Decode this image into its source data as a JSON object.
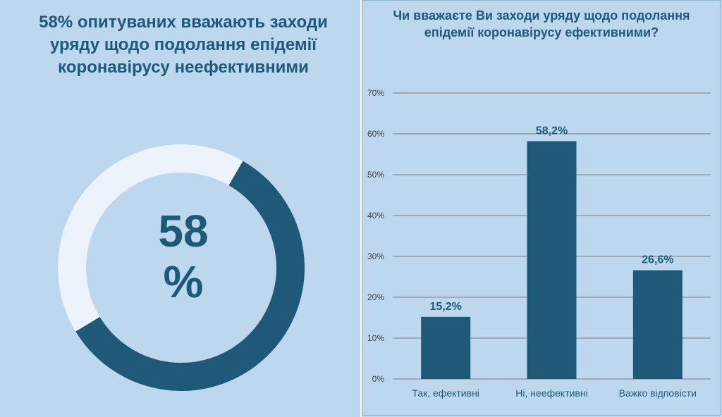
{
  "headline": "58% опитуваних вважають заходи уряду щодо подолання епідемії коронавірусу неефективними",
  "donut": {
    "value": 58,
    "label_number": "58",
    "label_unit": "%",
    "colors": {
      "filled": "#1e5a78",
      "remainder": "#edf3fa"
    }
  },
  "chart_data": {
    "type": "bar",
    "title": "Чи вважаєте Ви заходи уряду щодо подолання епідемії коронавірусу ефективними?",
    "categories": [
      "Так, ефективні",
      "Ні, неефективні",
      "Важко відповісти"
    ],
    "values": [
      15.2,
      58.2,
      26.6
    ],
    "data_labels": [
      "15,2%",
      "58,2%",
      "26,6%"
    ],
    "ylim": [
      0,
      70
    ],
    "yticks": [
      0,
      10,
      20,
      30,
      40,
      50,
      60,
      70
    ],
    "ytick_labels": [
      "0%",
      "10%",
      "20%",
      "30%",
      "40%",
      "50%",
      "60%",
      "70%"
    ],
    "xlabel": "",
    "ylabel": "",
    "grid": true,
    "legend": "none",
    "colors": {
      "bar": "#1e5a78",
      "grid": "#7f7f7f",
      "axis_text": "#404040",
      "label": "#1e5a78"
    }
  }
}
